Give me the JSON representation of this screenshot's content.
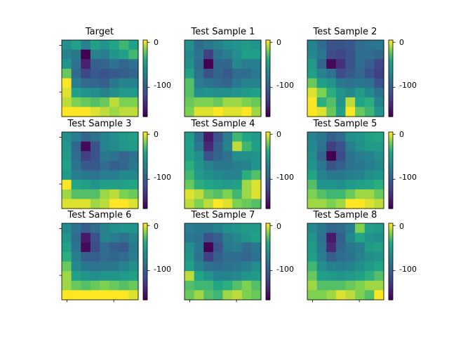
{
  "colormap": "viridis",
  "chart_data": [
    {
      "type": "heatmap",
      "title": "Target",
      "colorbar": {
        "min": -165,
        "max": 5,
        "ticks": [
          0,
          -100
        ]
      },
      "z": [
        [
          -60,
          -45,
          -70,
          -45,
          -55,
          -40,
          -30,
          -45
        ],
        [
          -70,
          -80,
          -165,
          -70,
          -75,
          -55,
          -45,
          -30
        ],
        [
          -55,
          -85,
          -145,
          -100,
          -95,
          -85,
          -95,
          -85
        ],
        [
          -20,
          -90,
          -120,
          -105,
          -110,
          -105,
          -100,
          -95
        ],
        [
          5,
          -75,
          -90,
          -95,
          -100,
          -80,
          -70,
          -70
        ],
        [
          0,
          -45,
          -55,
          -60,
          -70,
          -60,
          -50,
          -50
        ],
        [
          -5,
          -15,
          -20,
          -25,
          -20,
          -5,
          -15,
          -15
        ],
        [
          5,
          5,
          5,
          0,
          -5,
          -10,
          -5,
          -5
        ]
      ]
    },
    {
      "type": "heatmap",
      "title": "Test Sample 1",
      "colorbar": {
        "min": -165,
        "max": 5,
        "ticks": [
          0,
          -100
        ]
      },
      "z": [
        [
          -60,
          -90,
          -80,
          -70,
          -60,
          -55,
          -50,
          -55
        ],
        [
          -65,
          -85,
          -125,
          -85,
          -75,
          -60,
          -45,
          -45
        ],
        [
          -60,
          -90,
          -165,
          -95,
          -95,
          -65,
          -75,
          -75
        ],
        [
          -45,
          -85,
          -110,
          -95,
          -105,
          -90,
          -90,
          -80
        ],
        [
          -25,
          -75,
          -85,
          -90,
          -95,
          -80,
          -70,
          -70
        ],
        [
          -25,
          -60,
          -55,
          -60,
          -60,
          -55,
          -50,
          -45
        ],
        [
          -20,
          -15,
          -15,
          -20,
          -10,
          -10,
          -15,
          -20
        ],
        [
          -15,
          0,
          0,
          5,
          0,
          0,
          5,
          -10
        ]
      ]
    },
    {
      "type": "heatmap",
      "title": "Test Sample 2",
      "colorbar": {
        "min": -165,
        "max": 5,
        "ticks": [
          0,
          -100
        ]
      },
      "z": [
        [
          -70,
          -90,
          -110,
          -110,
          -105,
          -90,
          -85,
          -80
        ],
        [
          -65,
          -80,
          -115,
          -120,
          -110,
          -90,
          -90,
          -95
        ],
        [
          -50,
          -95,
          -160,
          -135,
          -110,
          -90,
          -100,
          -120
        ],
        [
          -45,
          -70,
          -85,
          -115,
          -105,
          -95,
          -110,
          -125
        ],
        [
          -20,
          -45,
          -55,
          -80,
          -85,
          -80,
          -85,
          -110
        ],
        [
          0,
          -15,
          -35,
          -55,
          -65,
          -50,
          -65,
          -85
        ],
        [
          5,
          -35,
          -25,
          -55,
          -5,
          -40,
          -35,
          -70
        ],
        [
          5,
          0,
          -20,
          -45,
          5,
          -20,
          -30,
          -55
        ]
      ]
    },
    {
      "type": "heatmap",
      "title": "Test Sample 3",
      "colorbar": {
        "min": -165,
        "max": 5,
        "ticks": [
          0,
          -100
        ]
      },
      "z": [
        [
          -60,
          -75,
          -95,
          -85,
          -70,
          -60,
          -50,
          -45
        ],
        [
          -55,
          -95,
          -160,
          -110,
          -70,
          -65,
          -55,
          -50
        ],
        [
          -50,
          -90,
          -125,
          -110,
          -80,
          -85,
          -95,
          -85
        ],
        [
          -45,
          -85,
          -105,
          -105,
          -90,
          -100,
          -95,
          -80
        ],
        [
          -50,
          -75,
          -80,
          -85,
          -75,
          -75,
          -65,
          -65
        ],
        [
          5,
          -40,
          -45,
          -55,
          -45,
          -45,
          -45,
          -40
        ],
        [
          -10,
          -25,
          -25,
          -25,
          -10,
          -5,
          -15,
          -20
        ],
        [
          0,
          0,
          0,
          -10,
          -5,
          5,
          5,
          0
        ]
      ]
    },
    {
      "type": "heatmap",
      "title": "Test Sample 4",
      "colorbar": {
        "min": -165,
        "max": 5,
        "ticks": [
          0,
          -100
        ]
      },
      "z": [
        [
          -50,
          -90,
          -150,
          -110,
          -75,
          -30,
          -40,
          -50
        ],
        [
          -45,
          -80,
          -140,
          -100,
          -70,
          -5,
          -30,
          -45
        ],
        [
          -45,
          -60,
          -110,
          -95,
          -85,
          -60,
          -60,
          -55
        ],
        [
          -35,
          -55,
          -70,
          -80,
          -80,
          -75,
          -70,
          -55
        ],
        [
          -30,
          -50,
          -60,
          -65,
          -70,
          -70,
          -35,
          -25
        ],
        [
          -20,
          -35,
          -40,
          -45,
          -50,
          -45,
          -10,
          0
        ],
        [
          0,
          -5,
          -20,
          -25,
          -15,
          -30,
          -10,
          0
        ],
        [
          -5,
          -15,
          -5,
          5,
          0,
          -15,
          -20,
          -25
        ]
      ]
    },
    {
      "type": "heatmap",
      "title": "Test Sample 5",
      "colorbar": {
        "min": -165,
        "max": 5,
        "ticks": [
          0,
          -100
        ]
      },
      "z": [
        [
          -70,
          -80,
          -100,
          -90,
          -60,
          -55,
          -45,
          -40
        ],
        [
          -65,
          -85,
          -125,
          -110,
          -75,
          -60,
          -50,
          -50
        ],
        [
          -60,
          -95,
          -165,
          -115,
          -85,
          -75,
          -70,
          -60
        ],
        [
          -55,
          -80,
          -110,
          -100,
          -85,
          -80,
          -75,
          -65
        ],
        [
          -40,
          -70,
          -80,
          -80,
          -75,
          -70,
          -60,
          -55
        ],
        [
          -25,
          -55,
          -55,
          -60,
          -50,
          -45,
          -40,
          -35
        ],
        [
          -15,
          -25,
          -30,
          -30,
          -20,
          -10,
          -10,
          -20
        ],
        [
          -10,
          -10,
          -15,
          -10,
          5,
          5,
          0,
          -5
        ]
      ]
    },
    {
      "type": "heatmap",
      "title": "Test Sample 6",
      "colorbar": {
        "min": -165,
        "max": 5,
        "ticks": [
          0,
          -100
        ]
      },
      "z": [
        [
          -65,
          -85,
          -100,
          -90,
          -70,
          -60,
          -55,
          -55
        ],
        [
          -55,
          -90,
          -150,
          -110,
          -70,
          -75,
          -85,
          -70
        ],
        [
          -45,
          -85,
          -160,
          -115,
          -90,
          -100,
          -105,
          -80
        ],
        [
          -35,
          -75,
          -100,
          -100,
          -90,
          -95,
          -90,
          -75
        ],
        [
          -20,
          -65,
          -80,
          -85,
          -80,
          -80,
          -70,
          -60
        ],
        [
          -10,
          -45,
          -55,
          -60,
          -55,
          -55,
          -50,
          -45
        ],
        [
          -10,
          -20,
          -25,
          -20,
          -15,
          -20,
          -25,
          -20
        ],
        [
          5,
          5,
          5,
          5,
          5,
          5,
          5,
          0
        ]
      ]
    },
    {
      "type": "heatmap",
      "title": "Test Sample 7",
      "colorbar": {
        "min": -165,
        "max": 5,
        "ticks": [
          0,
          -100
        ]
      },
      "z": [
        [
          -75,
          -80,
          -80,
          -70,
          -60,
          -55,
          -50,
          -50
        ],
        [
          -80,
          -85,
          -110,
          -100,
          -75,
          -65,
          -55,
          -45
        ],
        [
          -60,
          -80,
          -165,
          -110,
          -80,
          -75,
          -90,
          -80
        ],
        [
          -55,
          -85,
          -125,
          -100,
          -90,
          -90,
          -95,
          -85
        ],
        [
          -45,
          -70,
          -85,
          -90,
          -85,
          -80,
          -75,
          -60
        ],
        [
          -5,
          -40,
          -55,
          -70,
          -70,
          -65,
          -55,
          -50
        ],
        [
          -25,
          -30,
          -30,
          -40,
          -35,
          -25,
          -15,
          -25
        ],
        [
          -20,
          -10,
          -25,
          -30,
          -10,
          -5,
          -15,
          -20
        ]
      ]
    },
    {
      "type": "heatmap",
      "title": "Test Sample 8",
      "colorbar": {
        "min": -165,
        "max": 5,
        "ticks": [
          0,
          -100
        ]
      },
      "z": [
        [
          -65,
          -80,
          -95,
          -90,
          -75,
          -15,
          -45,
          -50
        ],
        [
          -55,
          -85,
          -150,
          -100,
          -65,
          -40,
          -55,
          -60
        ],
        [
          -50,
          -80,
          -140,
          -95,
          -80,
          -75,
          -50,
          -45
        ],
        [
          -45,
          -75,
          -100,
          -90,
          -85,
          -70,
          -60,
          -55
        ],
        [
          -30,
          -60,
          -70,
          -75,
          -70,
          -60,
          -50,
          -40
        ],
        [
          -20,
          -45,
          -50,
          -55,
          -50,
          -45,
          -35,
          -25
        ],
        [
          -10,
          -25,
          -25,
          -25,
          -20,
          -15,
          -10,
          -10
        ],
        [
          -15,
          -15,
          -10,
          0,
          -5,
          -15,
          -25,
          5
        ]
      ]
    }
  ]
}
